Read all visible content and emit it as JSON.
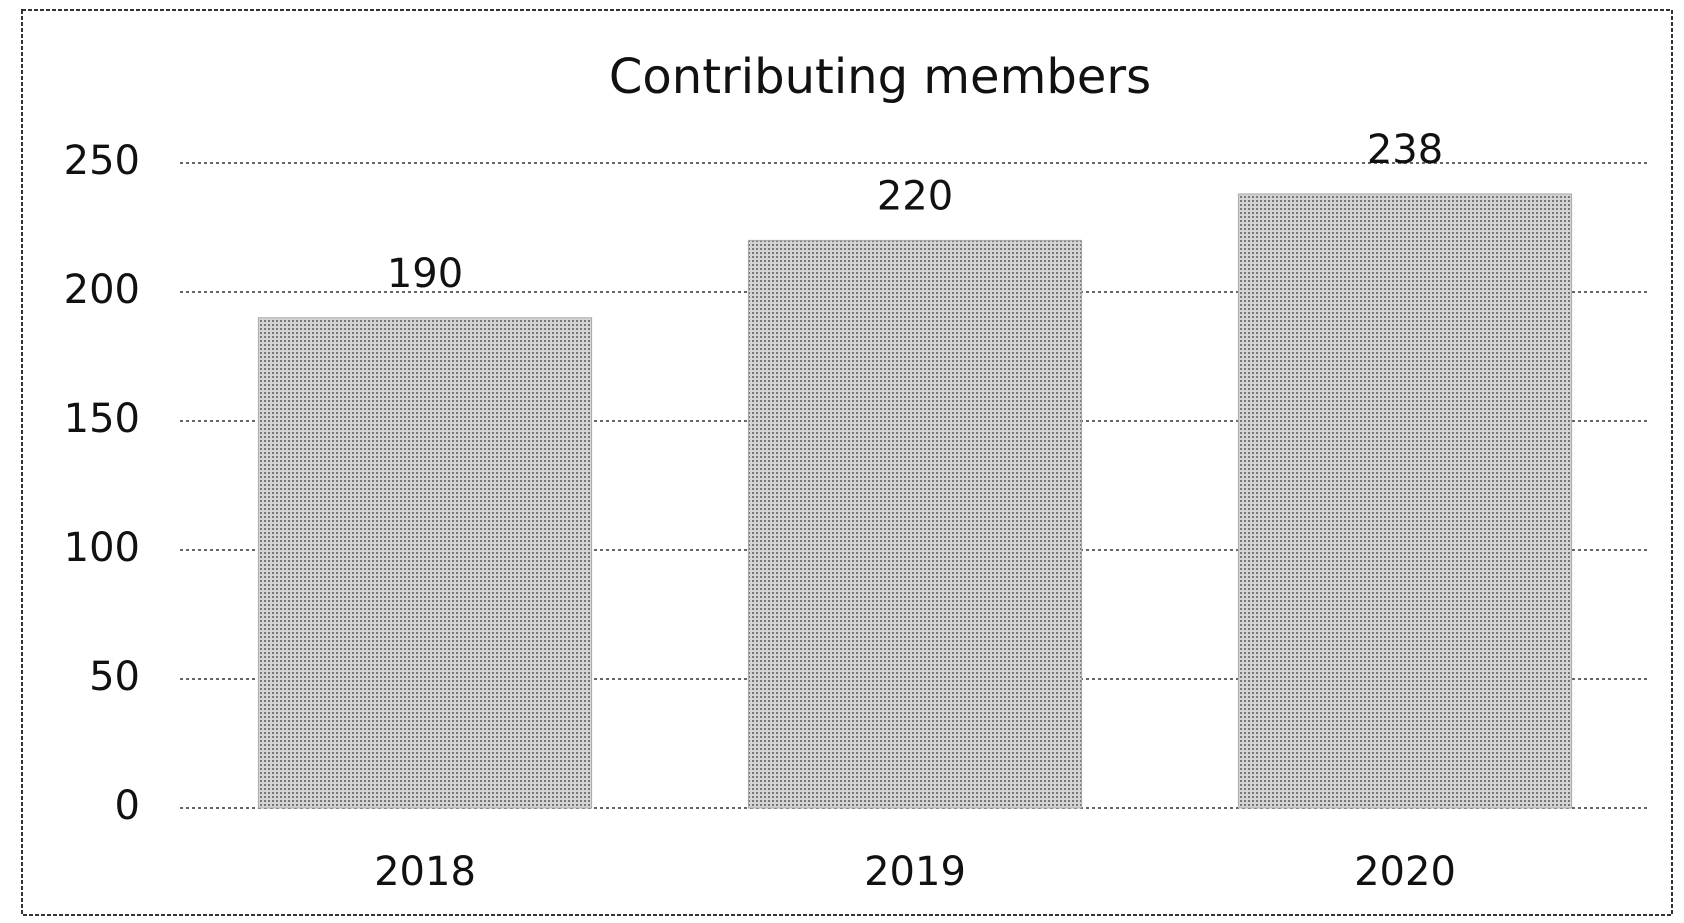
{
  "chart_data": {
    "type": "bar",
    "title": "Contributing members",
    "categories": [
      "2018",
      "2019",
      "2020"
    ],
    "values": [
      190,
      220,
      238
    ],
    "color": "#a9a9a9",
    "ylim": [
      0,
      250
    ],
    "yticks": [
      0,
      50,
      100,
      150,
      200,
      250
    ],
    "grid": true
  }
}
